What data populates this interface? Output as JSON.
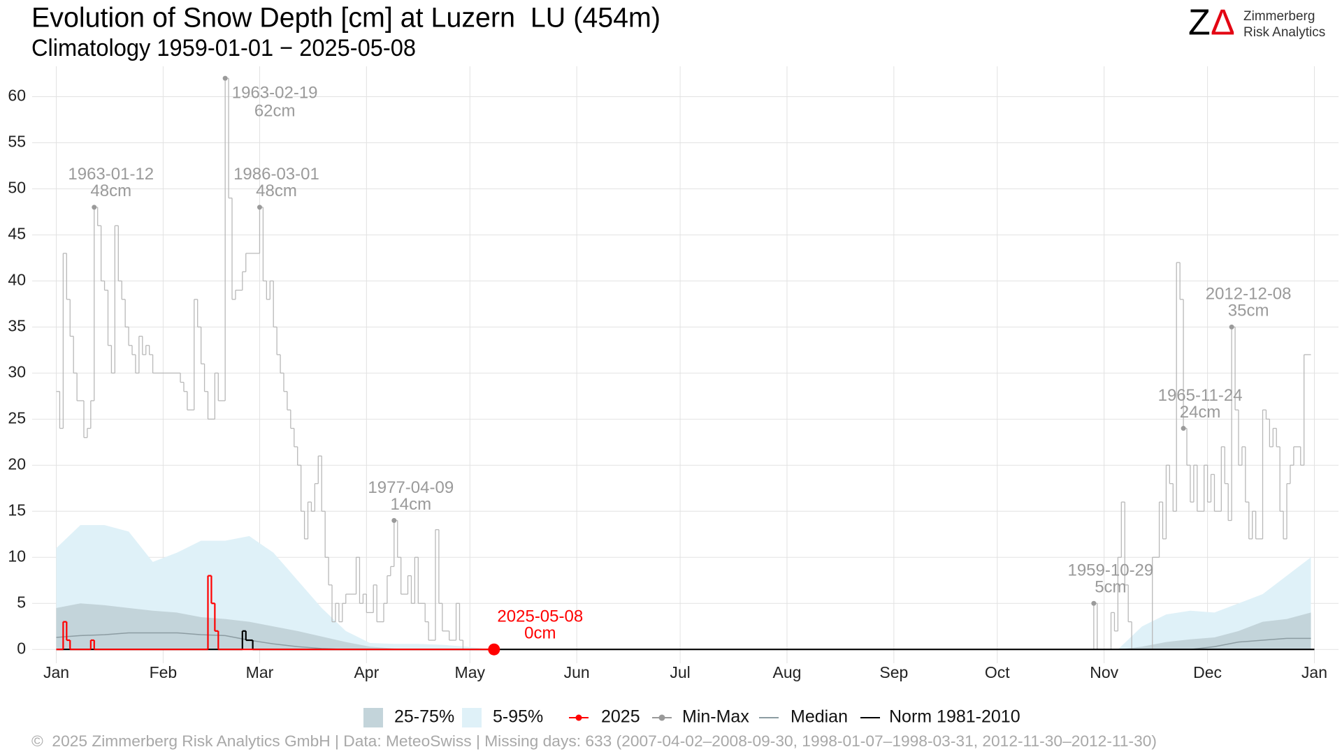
{
  "chart_data": {
    "type": "line",
    "title": "Evolution of Snow Depth [cm] at Luzern  LU (454m)",
    "subtitle": "Climatology 1959-01-01 − 2025-05-08",
    "xlim": [
      -7,
      372
    ],
    "ylim": [
      -1.5,
      63.3
    ],
    "xticks": [
      {
        "value": 0,
        "label": "Jan"
      },
      {
        "value": 31,
        "label": "Feb"
      },
      {
        "value": 59,
        "label": "Mar"
      },
      {
        "value": 90,
        "label": "Apr"
      },
      {
        "value": 120,
        "label": "May"
      },
      {
        "value": 151,
        "label": "Jun"
      },
      {
        "value": 181,
        "label": "Jul"
      },
      {
        "value": 212,
        "label": "Aug"
      },
      {
        "value": 243,
        "label": "Sep"
      },
      {
        "value": 273,
        "label": "Oct"
      },
      {
        "value": 304,
        "label": "Nov"
      },
      {
        "value": 334,
        "label": "Dec"
      },
      {
        "value": 365,
        "label": "Jan"
      }
    ],
    "yticks": [
      0,
      5,
      10,
      15,
      20,
      25,
      30,
      35,
      40,
      45,
      50,
      55,
      60
    ],
    "grid": true,
    "series": [
      {
        "name": "25-75%",
        "style": "area",
        "color": "#c3d4da",
        "x": [
          0,
          7,
          14,
          21,
          28,
          35,
          42,
          49,
          56,
          63,
          70,
          77,
          84,
          91,
          98,
          105,
          112,
          119,
          126,
          133,
          140,
          147,
          154,
          161,
          168,
          175,
          182,
          189,
          196,
          203,
          210,
          217,
          224,
          231,
          238,
          245,
          252,
          259,
          266,
          273,
          280,
          287,
          294,
          301,
          308,
          315,
          322,
          329,
          336,
          343,
          350,
          357,
          364
        ],
        "values": [
          4.5,
          5,
          4.8,
          4.5,
          4.2,
          4,
          3.5,
          3.3,
          3,
          2.5,
          2,
          1.4,
          0.8,
          0.3,
          0.1,
          0,
          0,
          0,
          0,
          0,
          0,
          0,
          0,
          0,
          0,
          0,
          0,
          0,
          0,
          0,
          0,
          0,
          0,
          0,
          0,
          0,
          0,
          0,
          0,
          0,
          0,
          0,
          0,
          0,
          0,
          0.3,
          0.8,
          1.1,
          1.3,
          2,
          3,
          3.3,
          4
        ]
      },
      {
        "name": "5-95%",
        "style": "area",
        "color": "#dff1f8",
        "x": [
          0,
          7,
          14,
          21,
          28,
          35,
          42,
          49,
          56,
          63,
          70,
          77,
          84,
          91,
          98,
          105,
          112,
          119,
          126,
          133,
          140,
          147,
          154,
          161,
          168,
          175,
          182,
          189,
          196,
          203,
          210,
          217,
          224,
          231,
          238,
          245,
          252,
          259,
          266,
          273,
          280,
          287,
          294,
          301,
          308,
          315,
          322,
          329,
          336,
          343,
          350,
          357,
          364
        ],
        "values": [
          11,
          13.5,
          13.5,
          12.8,
          9.5,
          10.5,
          11.8,
          11.8,
          12.3,
          10.5,
          7.5,
          4.5,
          2,
          0.7,
          0.6,
          0.6,
          0.5,
          0.3,
          0,
          0,
          0,
          0,
          0,
          0,
          0,
          0,
          0,
          0,
          0,
          0,
          0,
          0,
          0,
          0,
          0,
          0,
          0,
          0,
          0,
          0,
          0,
          0,
          0,
          0,
          0,
          2.5,
          3.8,
          4.2,
          4,
          5,
          6,
          8,
          10
        ]
      },
      {
        "name": "2025",
        "style": "step",
        "color": "#ff0000",
        "marker": true,
        "x": [
          0,
          2,
          3,
          4,
          10,
          11,
          44,
          45,
          46,
          47,
          127
        ],
        "values": [
          0,
          3,
          1,
          0,
          1,
          0,
          8,
          5,
          2,
          0,
          0
        ]
      },
      {
        "name": "Min-Max",
        "style": "step",
        "color": "#b8b8b8",
        "marker": true,
        "x": [
          0,
          1,
          2,
          3,
          4,
          5,
          6,
          8,
          9,
          10,
          11,
          12,
          13,
          14,
          15,
          16,
          17,
          18,
          19,
          20,
          21,
          22,
          23,
          24,
          25,
          26,
          27,
          28,
          36,
          37,
          38,
          40,
          41,
          42,
          43,
          44,
          46,
          47,
          49,
          50,
          51,
          52,
          54,
          55,
          59,
          60,
          61,
          62,
          63,
          64,
          65,
          66,
          67,
          68,
          69,
          70,
          71,
          72,
          73,
          74,
          75,
          76,
          77,
          78,
          79,
          80,
          81,
          82,
          83,
          84,
          87,
          88,
          89,
          90,
          92,
          93,
          95,
          96,
          97,
          98,
          99,
          100,
          102,
          103,
          104,
          105,
          107,
          108,
          110,
          111,
          112,
          114,
          116,
          117,
          118,
          301,
          302,
          306,
          307,
          308,
          309,
          310,
          311,
          312,
          318,
          320,
          321,
          322,
          323,
          324,
          325,
          326,
          327,
          328,
          329,
          330,
          331,
          333,
          334,
          335,
          336,
          338,
          339,
          340,
          341,
          342,
          343,
          344,
          345,
          346,
          347,
          348,
          350,
          351,
          352,
          353,
          354,
          355,
          356,
          357,
          358,
          359,
          361,
          362,
          364
        ],
        "values": [
          28,
          24,
          43,
          38,
          34,
          30,
          27,
          23,
          24,
          27,
          48,
          46,
          40,
          39,
          33,
          30,
          46,
          40,
          38,
          35,
          33,
          32,
          30,
          34,
          32,
          33,
          32,
          30,
          29,
          28,
          26,
          38,
          35,
          31,
          28,
          25,
          30,
          27,
          62,
          49,
          38,
          39,
          41,
          43,
          48,
          40,
          38,
          40,
          35,
          32,
          30,
          28,
          26,
          24,
          22,
          20,
          15,
          12,
          16,
          15,
          18,
          21,
          15,
          10,
          7,
          3,
          5,
          3,
          5,
          6,
          10,
          5,
          6,
          4,
          7,
          3,
          5,
          8,
          9,
          14,
          10,
          6,
          8,
          5,
          10,
          5,
          3,
          1,
          13,
          5,
          2,
          1,
          5,
          1,
          0,
          5,
          0,
          4,
          2,
          10,
          16,
          7,
          3,
          0,
          10,
          16,
          12,
          20,
          18,
          15,
          42,
          38,
          24,
          20,
          16,
          20,
          15,
          20,
          16,
          19,
          15,
          22,
          18,
          14,
          35,
          26,
          20,
          22,
          16,
          12,
          15,
          12,
          26,
          25,
          22,
          24,
          22,
          15,
          12,
          18,
          20,
          22,
          20,
          32,
          32
        ]
      },
      {
        "name": "Median",
        "style": "line",
        "color": "#8c9ca2",
        "x": [
          0,
          7,
          14,
          21,
          28,
          35,
          42,
          49,
          56,
          63,
          70,
          77,
          84,
          91,
          98,
          105,
          112,
          119,
          126,
          133,
          140,
          147,
          154,
          161,
          168,
          175,
          182,
          189,
          196,
          203,
          210,
          217,
          224,
          231,
          238,
          245,
          252,
          259,
          266,
          273,
          280,
          287,
          294,
          301,
          308,
          315,
          322,
          329,
          336,
          343,
          350,
          357,
          364
        ],
        "values": [
          1.3,
          1.5,
          1.6,
          1.8,
          1.8,
          1.8,
          1.6,
          1.5,
          1,
          0.6,
          0.3,
          0.1,
          0,
          0,
          0,
          0,
          0,
          0,
          0,
          0,
          0,
          0,
          0,
          0,
          0,
          0,
          0,
          0,
          0,
          0,
          0,
          0,
          0,
          0,
          0,
          0,
          0,
          0,
          0,
          0,
          0,
          0,
          0,
          0,
          0,
          0,
          0,
          0,
          0.3,
          0.8,
          1,
          1.2,
          1.2
        ]
      },
      {
        "name": "Norm 1981-2010",
        "style": "step",
        "color": "#000000",
        "x": [
          0,
          54,
          55,
          57,
          365
        ],
        "values": [
          0,
          2,
          1,
          0,
          0
        ]
      }
    ],
    "annotations": [
      {
        "date": "1963-01-12",
        "value": 48,
        "label": "48cm",
        "color": "#9a9a9a"
      },
      {
        "date": "1963-02-19",
        "value": 62,
        "label": "62cm",
        "color": "#9a9a9a"
      },
      {
        "date": "1986-03-01",
        "value": 48,
        "label": "48cm",
        "color": "#9a9a9a"
      },
      {
        "date": "1977-04-09",
        "value": 14,
        "label": "14cm",
        "color": "#9a9a9a"
      },
      {
        "date": "1959-10-29",
        "value": 5,
        "label": "5cm",
        "color": "#9a9a9a"
      },
      {
        "date": "1965-11-24",
        "value": 24,
        "label": "24cm",
        "color": "#9a9a9a"
      },
      {
        "date": "2012-12-08",
        "value": 35,
        "label": "35cm",
        "color": "#9a9a9a"
      },
      {
        "date": "2025-05-08",
        "value": 0,
        "label": "0cm",
        "color": "#ff0000"
      }
    ]
  },
  "logo": {
    "z": "Z",
    "delta": "Δ",
    "line1": "Zimmerberg",
    "line2": "Risk Analytics"
  },
  "footer": "©  2025 Zimmerberg Risk Analytics GmbH | Data: MeteoSwiss | Missing days: 633 (2007-04-02–2008-09-30, 1998-01-07–1998-03-31, 2012-11-30–2012-11-30)"
}
